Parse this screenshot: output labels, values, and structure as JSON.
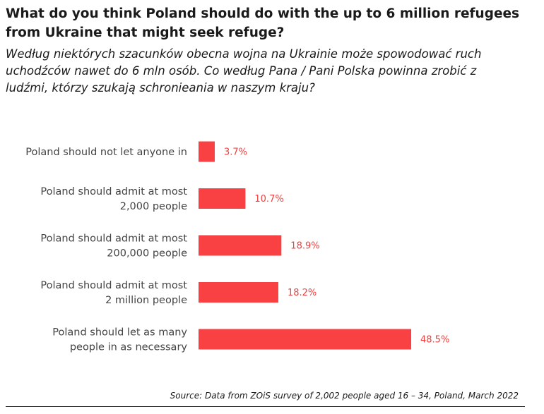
{
  "title": "What do you think Poland should do with the up to 6 million refugees from Ukraine that might seek refuge?",
  "subtitle": "Według niektórych szacunków obecna wojna na Ukrainie może spowodować ruch uchodźców nawet do 6 mln osób. Co według Pana / Pani Polska powinna zrobić z ludźmi, którzy szukają schronieania w naszym kraju?",
  "source": "Source: Data from ZOiS survey of 2,002 people aged 16 – 34, Poland, March 2022",
  "colors": {
    "bar": "#f94144",
    "value_label": "#f04040"
  },
  "chart_data": {
    "type": "bar",
    "orientation": "horizontal",
    "title": "What do you think Poland should do with the up to 6 million refugees from Ukraine that might seek refuge?",
    "xlabel": "",
    "ylabel": "",
    "xlim": [
      0,
      50
    ],
    "grid": false,
    "categories": [
      [
        "Poland should not let anyone in"
      ],
      [
        "Poland should admit at most",
        "2,000 people"
      ],
      [
        "Poland should admit at most",
        "200,000 people"
      ],
      [
        "Poland should admit at most",
        "2 million people"
      ],
      [
        "Poland should let as many",
        "people in as necessary"
      ]
    ],
    "values": [
      3.7,
      10.7,
      18.9,
      18.2,
      48.5
    ],
    "value_labels": [
      "3.7%",
      "10.7%",
      "18.9%",
      "18.2%",
      "48.5%"
    ]
  }
}
